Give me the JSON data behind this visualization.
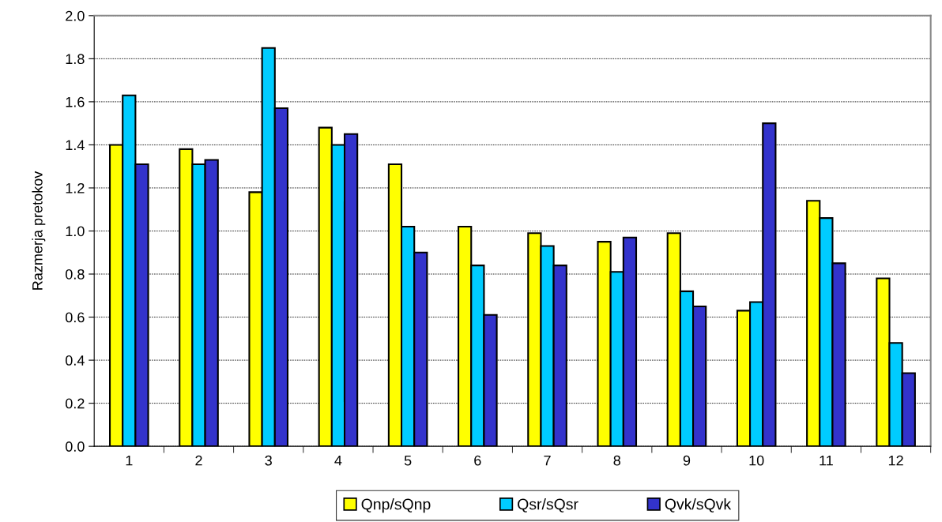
{
  "chart_data": {
    "type": "bar",
    "ylabel": "Razmerja pretokov",
    "categories": [
      "1",
      "2",
      "3",
      "4",
      "5",
      "6",
      "7",
      "8",
      "9",
      "10",
      "11",
      "12"
    ],
    "series": [
      {
        "name": "Qnp/sQnp",
        "color": "#ffff00",
        "values": [
          1.4,
          1.38,
          1.18,
          1.48,
          1.31,
          1.02,
          0.99,
          0.95,
          0.99,
          0.63,
          1.14,
          0.78
        ]
      },
      {
        "name": "Qsr/sQsr",
        "color": "#00ccff",
        "values": [
          1.63,
          1.31,
          1.85,
          1.4,
          1.02,
          0.84,
          0.93,
          0.81,
          0.72,
          0.67,
          1.06,
          0.48
        ]
      },
      {
        "name": "Qvk/sQvk",
        "color": "#3333cc",
        "values": [
          1.31,
          1.33,
          1.57,
          1.45,
          0.9,
          0.61,
          0.84,
          0.97,
          0.65,
          1.5,
          0.85,
          0.34
        ]
      }
    ],
    "ylim": [
      0,
      2.0
    ],
    "yticks": [
      {
        "value": 0,
        "label": "0.0"
      },
      {
        "value": 0.2,
        "label": "0.2"
      },
      {
        "value": 0.4,
        "label": "0.4"
      },
      {
        "value": 0.6,
        "label": "0.6"
      },
      {
        "value": 0.8,
        "label": "0.8"
      },
      {
        "value": 1.0,
        "label": "1.0"
      },
      {
        "value": 1.2,
        "label": "1.2"
      },
      {
        "value": 1.4,
        "label": "1.4"
      },
      {
        "value": 1.6,
        "label": "1.6"
      },
      {
        "value": 1.8,
        "label": "1.8"
      },
      {
        "value": 2.0,
        "label": "2.0"
      }
    ],
    "grid": "y",
    "legend": "bottom"
  }
}
